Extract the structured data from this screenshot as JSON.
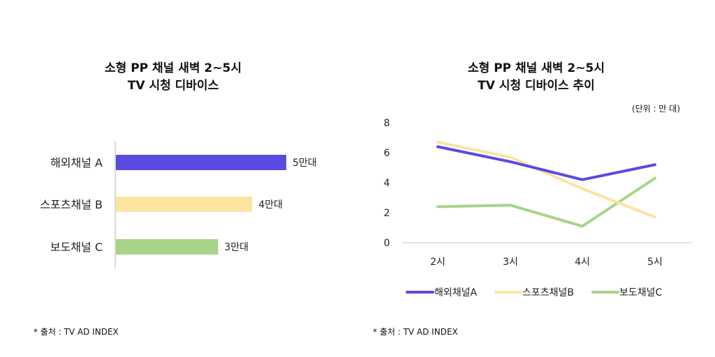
{
  "left_chart": {
    "title_line1": "소형 PP 채널 새벽 2~5시",
    "title_line2": "TV 시청 디바이스",
    "source": "* 출처 : TV AD INDEX"
  },
  "right_chart": {
    "title_line1": "소형 PP 채널 새벽 2~5시",
    "title_line2": "TV 시청 디바이스 추이",
    "unit": "(단위 : 만 대)",
    "source": "* 출처 : TV AD INDEX"
  },
  "chart_data": [
    {
      "type": "bar",
      "orientation": "horizontal",
      "categories": [
        "해외채널 A",
        "스포츠채널 B",
        "보도채널 C"
      ],
      "values": [
        5,
        4,
        3
      ],
      "value_labels": [
        "5만대",
        "4만대",
        "3만대"
      ],
      "colors": [
        "#5b4ae0",
        "#fbe49f",
        "#a8d48a"
      ],
      "xlim": [
        0,
        5
      ]
    },
    {
      "type": "line",
      "categories": [
        "2시",
        "3시",
        "4시",
        "5시"
      ],
      "ylim": [
        0,
        8
      ],
      "yticks": [
        "0",
        "2",
        "4",
        "6",
        "8"
      ],
      "series": [
        {
          "name": "해외채널A",
          "color": "#5b4ae0",
          "values": [
            6.4,
            5.4,
            4.2,
            5.2
          ]
        },
        {
          "name": "스포츠채널B",
          "color": "#fbe49f",
          "values": [
            6.7,
            5.7,
            3.6,
            1.7
          ]
        },
        {
          "name": "보도채널C",
          "color": "#a8d48a",
          "values": [
            2.4,
            2.5,
            1.1,
            4.3
          ]
        }
      ],
      "legend": "bottom"
    }
  ]
}
